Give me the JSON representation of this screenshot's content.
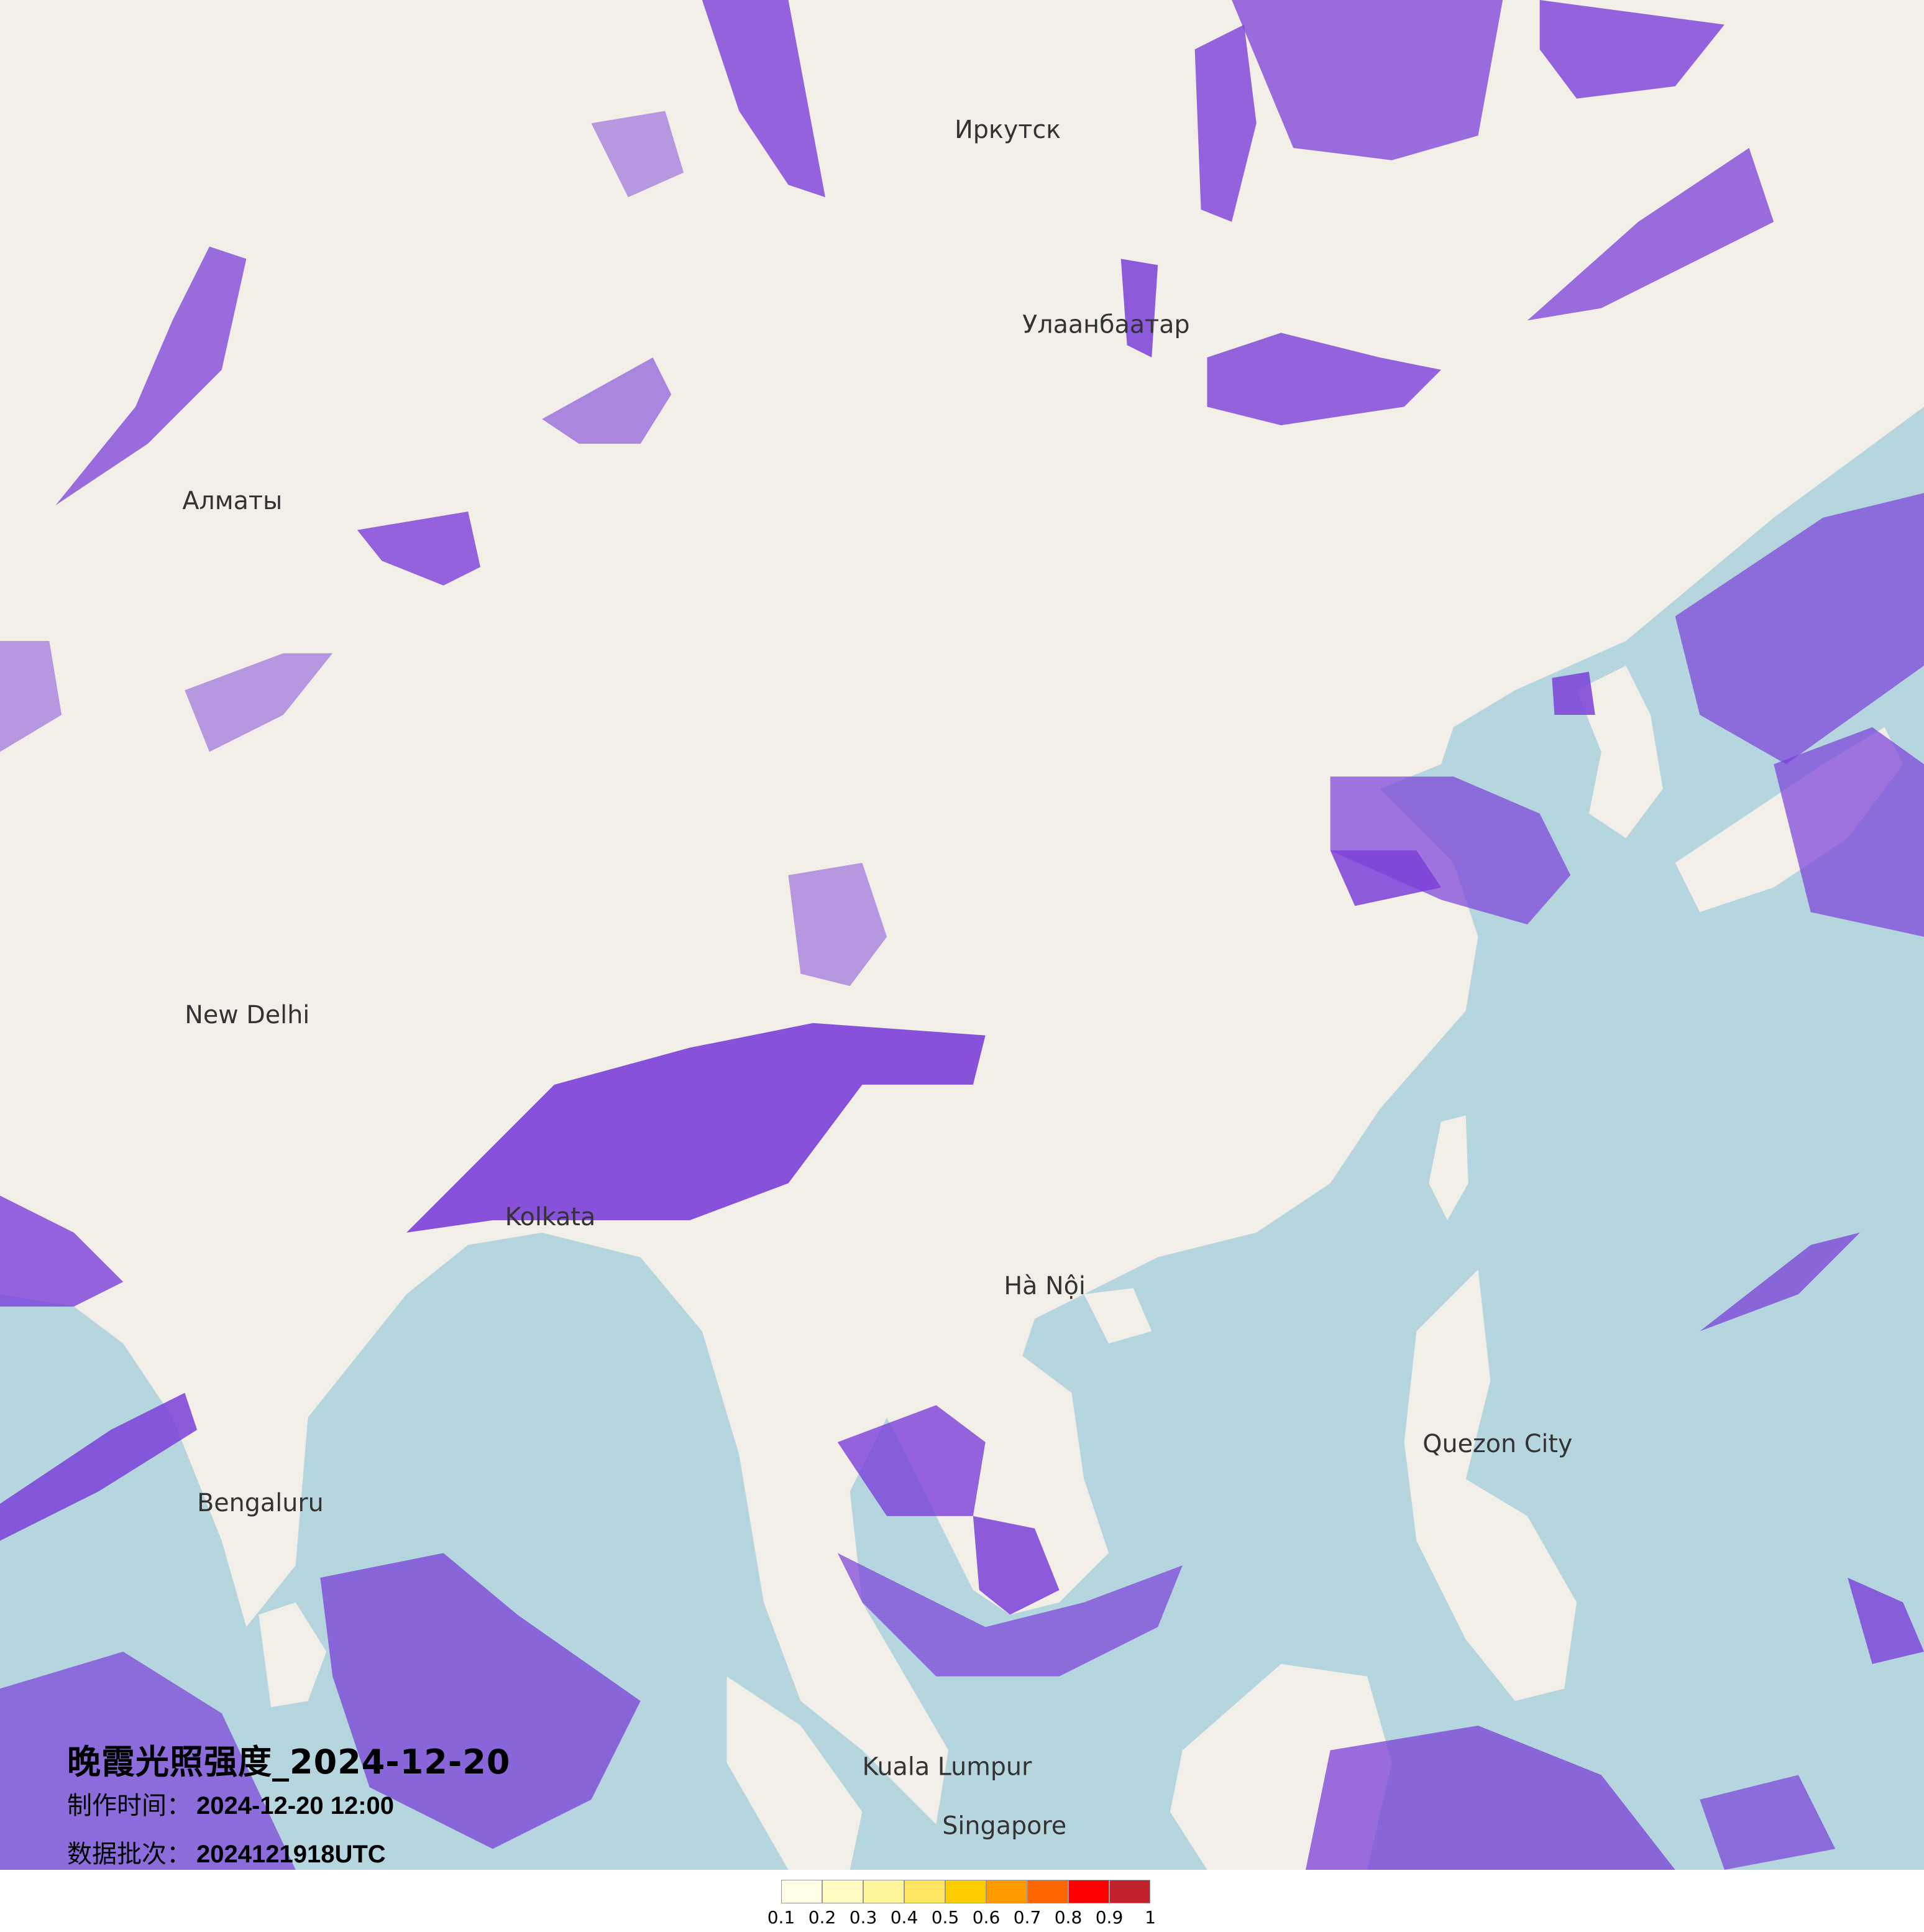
{
  "title": "晚霞光照强度_2024-12-20",
  "production_time": {
    "label": "制作时间：",
    "value": "2024-12-20 12:00"
  },
  "data_batch": {
    "label": "数据批次：",
    "value": "2024121918UTC"
  },
  "legend": {
    "colors": [
      "#fffde8",
      "#fffbc2",
      "#fff59a",
      "#ffe45f",
      "#ffcc00",
      "#ff9a00",
      "#ff6600",
      "#ff0000",
      "#c0232b"
    ],
    "labels": [
      "0.1",
      "0.2",
      "0.3",
      "0.4",
      "0.5",
      "0.6",
      "0.7",
      "0.8",
      "0.9",
      "1"
    ]
  },
  "map": {
    "land_color": "#f2efe9",
    "sea_color": "#b5d5df",
    "overlay_color": "#7b3fd8",
    "places": {
      "ulaanbaatar": "Улаанбаатар",
      "irkutsk": "Иркутск",
      "almaty": "Алматы",
      "new_delhi": "New Delhi",
      "kolkata": "Kolkata",
      "hanoi": "Hà Nội",
      "singapore": "Singapore",
      "bengaluru": "Bengaluru",
      "kuala_lumpur": "Kuala Lumpur",
      "quezon_city": "Quezon City"
    }
  }
}
